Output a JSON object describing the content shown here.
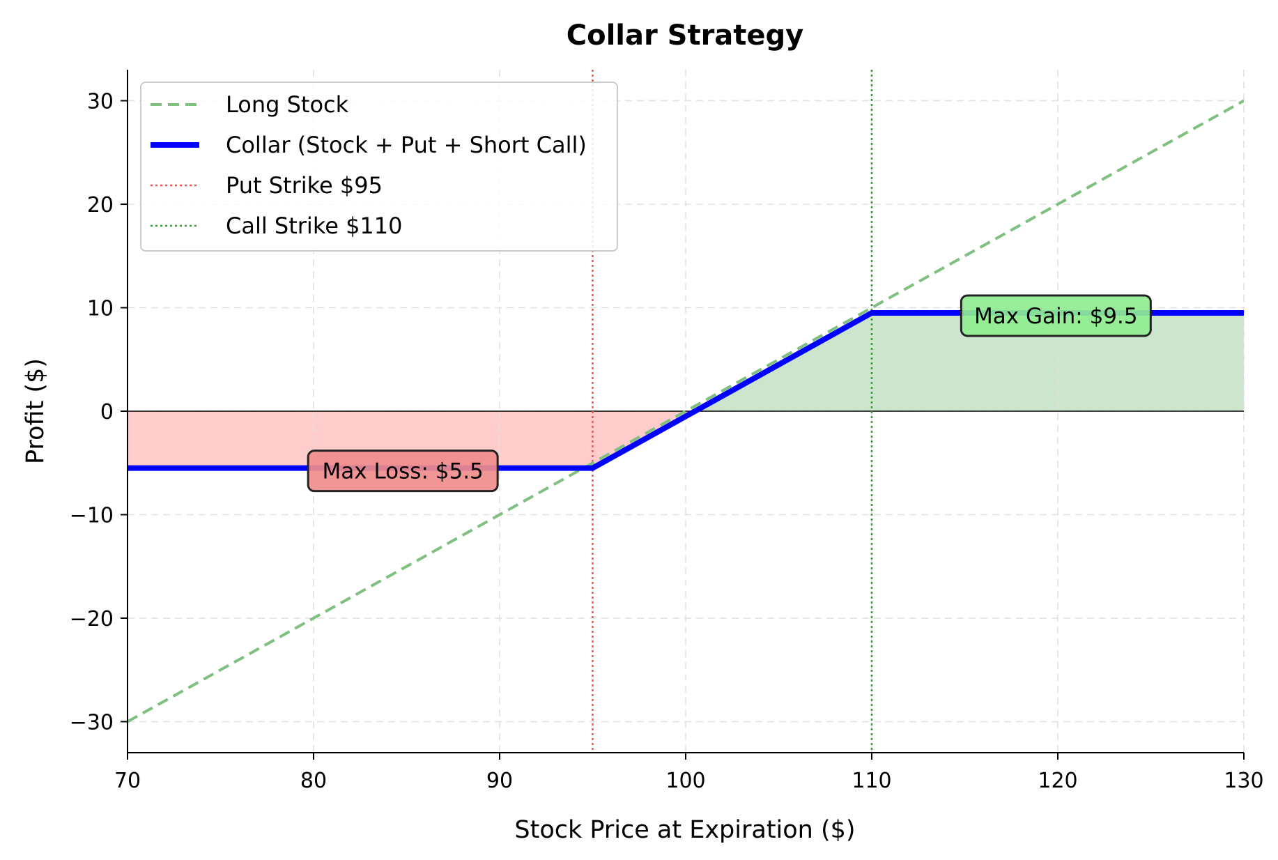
{
  "chart_data": {
    "type": "line",
    "title": "Collar Strategy",
    "xlabel": "Stock Price at Expiration ($)",
    "ylabel": "Profit ($)",
    "xlim": [
      70,
      130
    ],
    "ylim": [
      -33,
      33
    ],
    "xticks": [
      70,
      80,
      90,
      100,
      110,
      120,
      130
    ],
    "yticks": [
      30,
      20,
      10,
      0,
      -10,
      -20,
      -30
    ],
    "xtick_labels": [
      "70",
      "80",
      "90",
      "100",
      "110",
      "120",
      "130"
    ],
    "ytick_labels": [
      "30",
      "20",
      "10",
      "0",
      "−10",
      "−20",
      "−30"
    ],
    "grid": true,
    "legend_position": "top-left",
    "series": [
      {
        "name": "Long Stock",
        "style": "dashed",
        "color": "#7fbf7f",
        "x": [
          70,
          130
        ],
        "y": [
          -30,
          30
        ]
      },
      {
        "name": "Collar (Stock + Put + Short Call)",
        "style": "solid",
        "color": "#0000ff",
        "x": [
          70,
          95,
          110,
          130
        ],
        "y": [
          -5.5,
          -5.5,
          9.5,
          9.5
        ]
      }
    ],
    "reference_lines": [
      {
        "name": "Put Strike $95",
        "x": 95,
        "style": "dotted",
        "color": "#ff4d4d"
      },
      {
        "name": "Call Strike $110",
        "x": 110,
        "style": "dotted",
        "color": "#3a9a3a"
      }
    ],
    "shaded_regions": [
      {
        "kind": "loss",
        "color": "#ffcccc"
      },
      {
        "kind": "gain",
        "color": "#cce5cc"
      }
    ],
    "annotations": [
      {
        "text": "Max Loss: $5.5",
        "x": 84.8,
        "y": -5.5,
        "bg": "#f08c8c"
      },
      {
        "text": "Max Gain: $9.5",
        "x": 119.9,
        "y": 9.5,
        "bg": "#90ee90"
      }
    ]
  }
}
